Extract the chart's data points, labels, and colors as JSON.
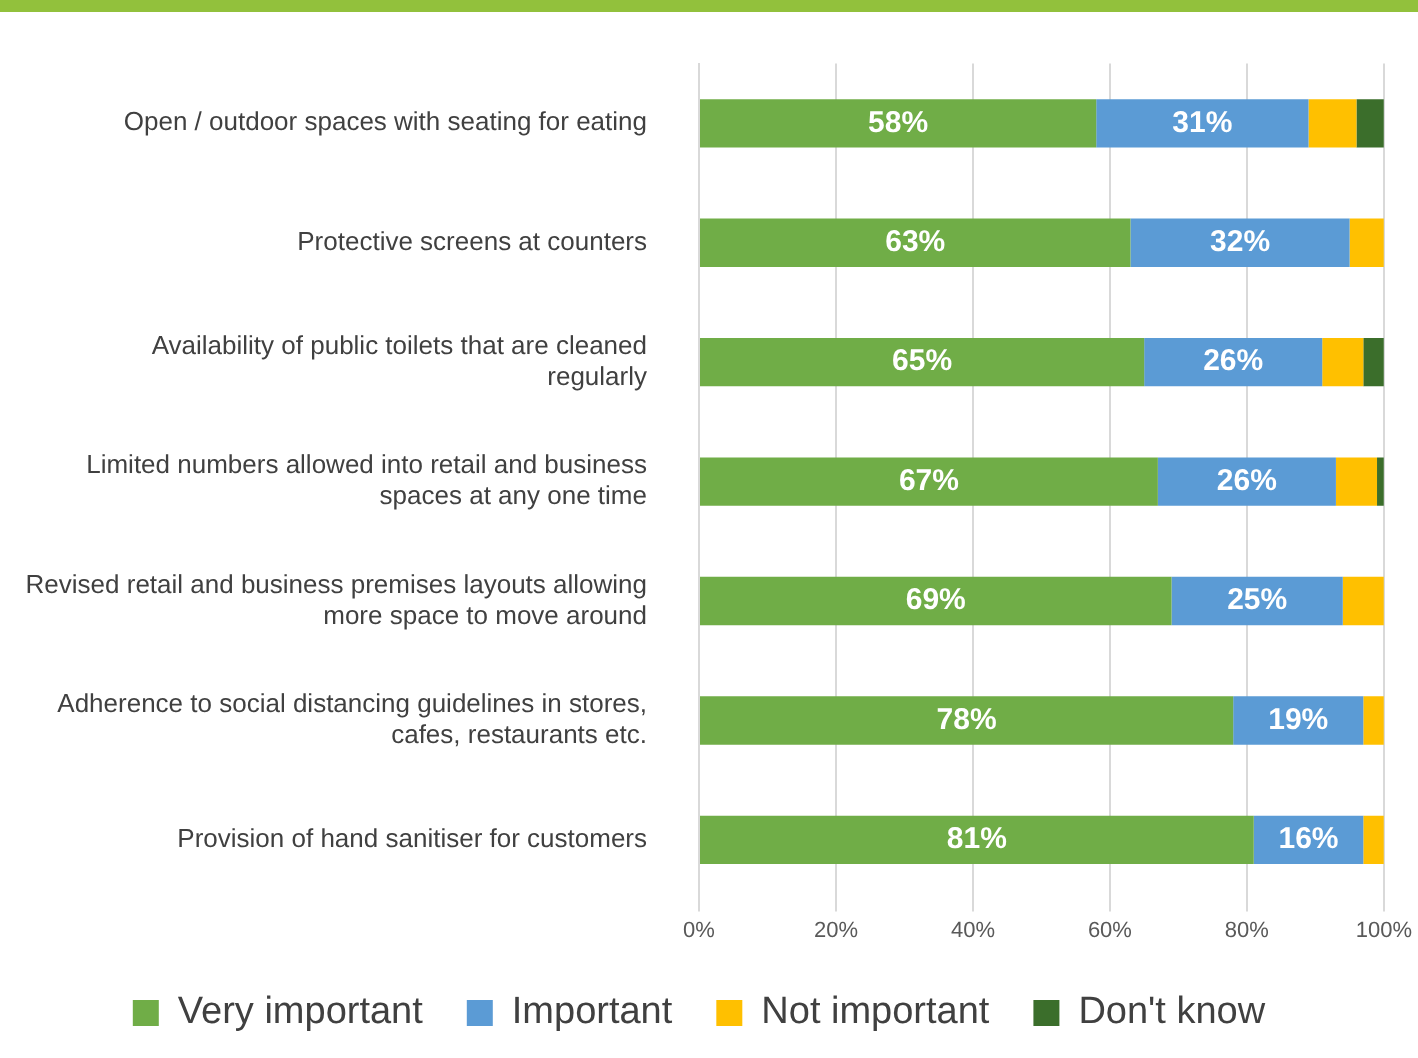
{
  "chart_data": {
    "type": "bar",
    "orientation": "horizontal",
    "stacked": true,
    "categories": [
      "Open / outdoor spaces with seating for eating",
      "Protective screens at counters",
      "Availability of public toilets that are cleaned regularly",
      "Limited numbers allowed into retail and business spaces at any one time",
      "Revised retail and business premises layouts allowing more space to move around",
      "Adherence to social distancing guidelines in stores, cafes, restaurants etc.",
      "Provision of hand sanitiser for customers"
    ],
    "series": [
      {
        "name": "Very important",
        "color": "#70ad47",
        "values": [
          58,
          63,
          65,
          67,
          69,
          78,
          81
        ],
        "value_labels": [
          "58%",
          "63%",
          "65%",
          "67%",
          "69%",
          "78%",
          "81%"
        ]
      },
      {
        "name": "Important",
        "color": "#5b9bd5",
        "values": [
          31,
          32,
          26,
          26,
          25,
          19,
          16
        ],
        "value_labels": [
          "31%",
          "32%",
          "26%",
          "26%",
          "25%",
          "19%",
          "16%"
        ]
      },
      {
        "name": "Not important",
        "color": "#ffc000",
        "values": [
          7,
          5,
          6,
          6,
          6,
          3,
          3
        ]
      },
      {
        "name": "Don't know",
        "color": "#3b6e2b",
        "values": [
          4,
          0,
          3,
          1,
          0,
          0,
          0
        ]
      }
    ],
    "xlim": [
      0,
      100
    ],
    "xticks": [
      {
        "value": 0,
        "label": "0%"
      },
      {
        "value": 20,
        "label": "20%"
      },
      {
        "value": 40,
        "label": "40%"
      },
      {
        "value": 60,
        "label": "60%"
      },
      {
        "value": 80,
        "label": "80%"
      },
      {
        "value": 100,
        "label": "100%"
      }
    ],
    "grid": "x",
    "legend": "bottom"
  }
}
